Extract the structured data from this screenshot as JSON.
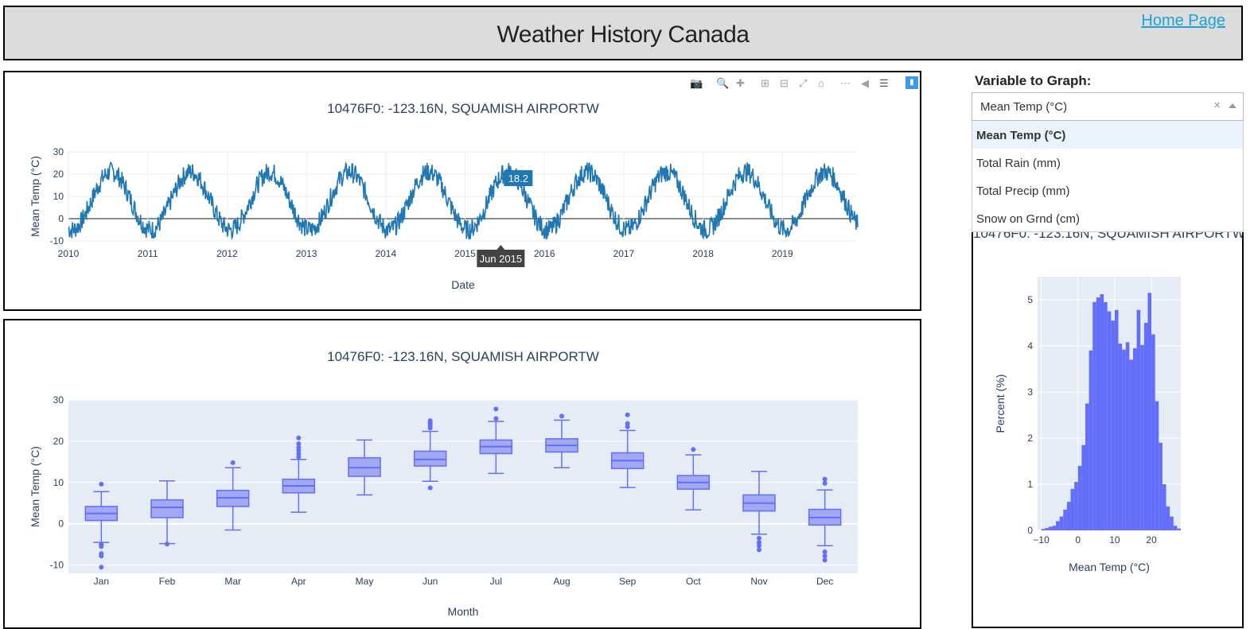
{
  "header": {
    "title": "Weather History Canada",
    "home_link": "Home Page"
  },
  "controls": {
    "label": "Variable to Graph:",
    "selected": "Mean Temp (°C)",
    "clear_symbol": "×",
    "options": [
      "Mean Temp (°C)",
      "Total Rain (mm)",
      "Total Precip (mm)",
      "Snow on Grnd (cm)"
    ]
  },
  "modebar": {
    "icons": [
      "camera-icon",
      "zoom-icon",
      "pan-icon",
      "zoom-in-icon",
      "zoom-out-icon",
      "autoscale-icon",
      "reset-axes-icon",
      "spike-lines-icon",
      "hover-closest-icon",
      "hover-compare-icon",
      "plotly-logo-icon"
    ]
  },
  "colors": {
    "line": "#1f77b4",
    "box": "#636efa",
    "plot_bg": "#e5ecf6",
    "tooltip_bg": "#1f77b4"
  },
  "chart_data": [
    {
      "type": "line",
      "title": "10476F0: -123.16N, SQUAMISH AIRPORTW",
      "xlabel": "Date",
      "ylabel": "Mean Temp (°C)",
      "x_ticks": [
        "2010",
        "2011",
        "2012",
        "2013",
        "2014",
        "2015",
        "2016",
        "2017",
        "2018",
        "2019"
      ],
      "y_ticks": [
        30,
        20,
        10,
        0,
        -10
      ],
      "xlim": [
        2010.0,
        2019.95
      ],
      "ylim": [
        -10,
        30
      ],
      "grid": true,
      "series": [
        {
          "description_values": "seasonal daily mean temperature; yearly cycle approx. min -5 to max 22",
          "annual_min": -5,
          "annual_max": 21
        }
      ],
      "hover": {
        "x": "Jun 2015",
        "y": "18.2"
      }
    },
    {
      "type": "box",
      "title": "10476F0: -123.16N, SQUAMISH AIRPORTW",
      "xlabel": "Month",
      "ylabel": "Mean Temp (°C)",
      "categories": [
        "Jan",
        "Feb",
        "Mar",
        "Apr",
        "May",
        "Jun",
        "Jul",
        "Aug",
        "Sep",
        "Oct",
        "Nov",
        "Dec"
      ],
      "y_ticks": [
        30,
        20,
        10,
        0,
        -10
      ],
      "ylim": [
        -12,
        30
      ],
      "boxes": [
        {
          "min": -4.5,
          "q1": 0.8,
          "median": 2.5,
          "q3": 4.2,
          "max": 7.8,
          "outliers": [
            9.6,
            -5,
            -5.5,
            -7.2,
            -7.8,
            -10.5
          ]
        },
        {
          "min": -4.8,
          "q1": 1.5,
          "median": 4,
          "q3": 5.8,
          "max": 10.4,
          "outliers": [
            -4.9
          ]
        },
        {
          "min": -1.5,
          "q1": 4.2,
          "median": 6.3,
          "q3": 8.1,
          "max": 13.6,
          "outliers": [
            14.8
          ]
        },
        {
          "min": 2.8,
          "q1": 7.5,
          "median": 9.2,
          "q3": 10.8,
          "max": 15.6,
          "outliers": [
            16.2,
            17.0,
            17.8,
            18.5,
            19.4,
            20.8
          ]
        },
        {
          "min": 7,
          "q1": 11.5,
          "median": 13.6,
          "q3": 16,
          "max": 20.3,
          "outliers": []
        },
        {
          "min": 10.3,
          "q1": 14,
          "median": 15.6,
          "q3": 17.6,
          "max": 22.4,
          "outliers": [
            8.7,
            23.2,
            23.8,
            24.4,
            25
          ]
        },
        {
          "min": 12.2,
          "q1": 17,
          "median": 18.7,
          "q3": 20.3,
          "max": 24.8,
          "outliers": [
            25.5,
            27.8
          ]
        },
        {
          "min": 13.6,
          "q1": 17.4,
          "median": 19,
          "q3": 20.6,
          "max": 25.1,
          "outliers": [
            26.1
          ]
        },
        {
          "min": 8.8,
          "q1": 13.4,
          "median": 15.3,
          "q3": 17.2,
          "max": 22.6,
          "outliers": [
            23.5,
            24.3,
            26.4
          ]
        },
        {
          "min": 3.4,
          "q1": 8.4,
          "median": 10,
          "q3": 11.7,
          "max": 16.7,
          "outliers": [
            18
          ]
        },
        {
          "min": -2.5,
          "q1": 3.1,
          "median": 5,
          "q3": 7,
          "max": 12.7,
          "outliers": [
            -3.5,
            -4.5,
            -5.3,
            -6.3
          ]
        },
        {
          "min": -5.3,
          "q1": -0.3,
          "median": 1.5,
          "q3": 3.5,
          "max": 8.2,
          "outliers": [
            9.8,
            10.8,
            -6.8,
            -7.8,
            -8.8
          ]
        }
      ]
    },
    {
      "type": "histogram",
      "title": "10476F0: -123.16N, SQUAMISH AIRPORTW",
      "xlabel": "Mean Temp (°C)",
      "ylabel": "Percent (%)",
      "x_ticks": [
        -10,
        0,
        10,
        20
      ],
      "y_ticks": [
        5,
        4,
        3,
        2,
        1,
        0
      ],
      "xlim": [
        -11,
        28
      ],
      "ylim": [
        0,
        5.5
      ],
      "bin_start": -10,
      "bin_width": 1,
      "values": [
        0.03,
        0.05,
        0.08,
        0.1,
        0.2,
        0.3,
        0.45,
        0.62,
        0.9,
        1.05,
        1.4,
        1.85,
        2.75,
        3.9,
        4.95,
        5.05,
        5.12,
        4.95,
        4.75,
        4.55,
        4.78,
        4.05,
        3.92,
        4.08,
        3.7,
        3.95,
        4.78,
        4.02,
        4.5,
        5.15,
        4.25,
        2.8,
        1.9,
        1.0,
        0.52,
        0.3,
        0.1,
        0.04
      ]
    }
  ]
}
